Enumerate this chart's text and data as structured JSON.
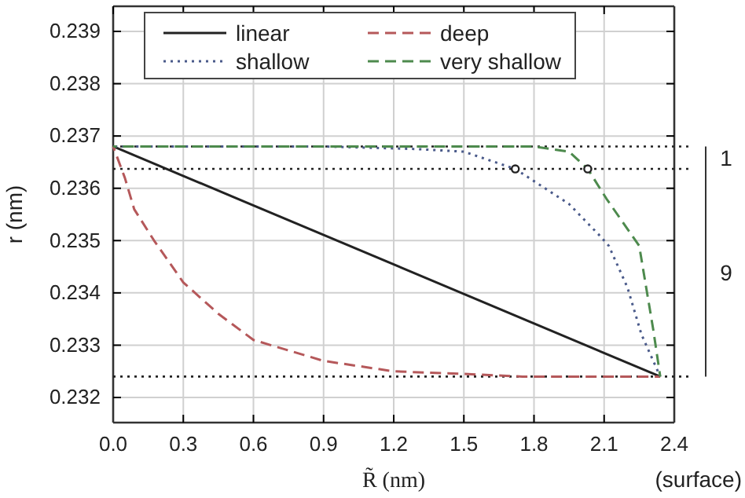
{
  "chart_data": {
    "type": "line",
    "xlabel": "R̃ (nm)",
    "ylabel": "r (nm)",
    "xlim": [
      0,
      2.4
    ],
    "xticks": [
      {
        "value": 0,
        "label": "0.0"
      },
      0.3,
      0.6,
      0.9,
      1.2,
      1.5,
      1.8,
      2.1,
      2.4
    ],
    "ylim": [
      0.23152,
      0.23948
    ],
    "yticks": [
      0.232,
      0.233,
      0.234,
      0.235,
      0.236,
      0.237,
      0.238,
      0.239
    ],
    "grid": true,
    "legend": "top",
    "series": [
      {
        "name": "linear",
        "color": "#222222",
        "line_style": "solid",
        "x": [
          0,
          2.34
        ],
        "values": [
          0.2368,
          0.2324
        ]
      },
      {
        "name": "deep",
        "color": "#b5585a",
        "line_style": "dashed",
        "x": [
          0,
          0.05,
          0.09,
          0.175,
          0.3,
          0.45,
          0.6,
          0.75,
          0.9,
          1.2,
          1.5,
          1.75,
          2.34
        ],
        "values": [
          0.2368,
          0.2362,
          0.2356,
          0.235,
          0.2342,
          0.2336,
          0.2331,
          0.2329,
          0.2327,
          0.2325,
          0.23245,
          0.2324,
          0.2324
        ]
      },
      {
        "name": "shallow",
        "color": "#4a5a8a",
        "line_style": "dotted",
        "x": [
          0,
          0.9,
          1.3,
          1.5,
          1.72,
          1.95,
          2.08,
          2.12,
          2.2,
          2.26,
          2.34
        ],
        "values": [
          0.2368,
          0.2368,
          0.23675,
          0.2367,
          0.23637,
          0.2357,
          0.2351,
          0.2349,
          0.2341,
          0.2332,
          0.2324
        ]
      },
      {
        "name": "very shallow",
        "color": "#4d8a4d",
        "line_style": "dashed",
        "x": [
          0,
          1.8,
          1.95,
          2.03,
          2.11,
          2.25,
          2.28,
          2.31,
          2.34
        ],
        "values": [
          0.2368,
          0.2368,
          0.2367,
          0.23637,
          0.2358,
          0.2349,
          0.2341,
          0.2333,
          0.2324
        ]
      },
      {
        "type": "scatter",
        "marker": "circle",
        "color": "#222222",
        "x": [
          1.72,
          2.03
        ],
        "values": [
          0.23637,
          0.23637
        ]
      }
    ],
    "ref_lines": [
      {
        "axis": "y",
        "value": 0.2368,
        "color": "#222222",
        "line_style": "dotted"
      },
      {
        "axis": "y",
        "value": 0.23637,
        "color": "#222222",
        "line_style": "dotted"
      },
      {
        "axis": "y",
        "value": 0.2324,
        "color": "#222222",
        "line_style": "dotted"
      }
    ],
    "annotations": [
      "1",
      "9",
      "(surface)"
    ]
  }
}
